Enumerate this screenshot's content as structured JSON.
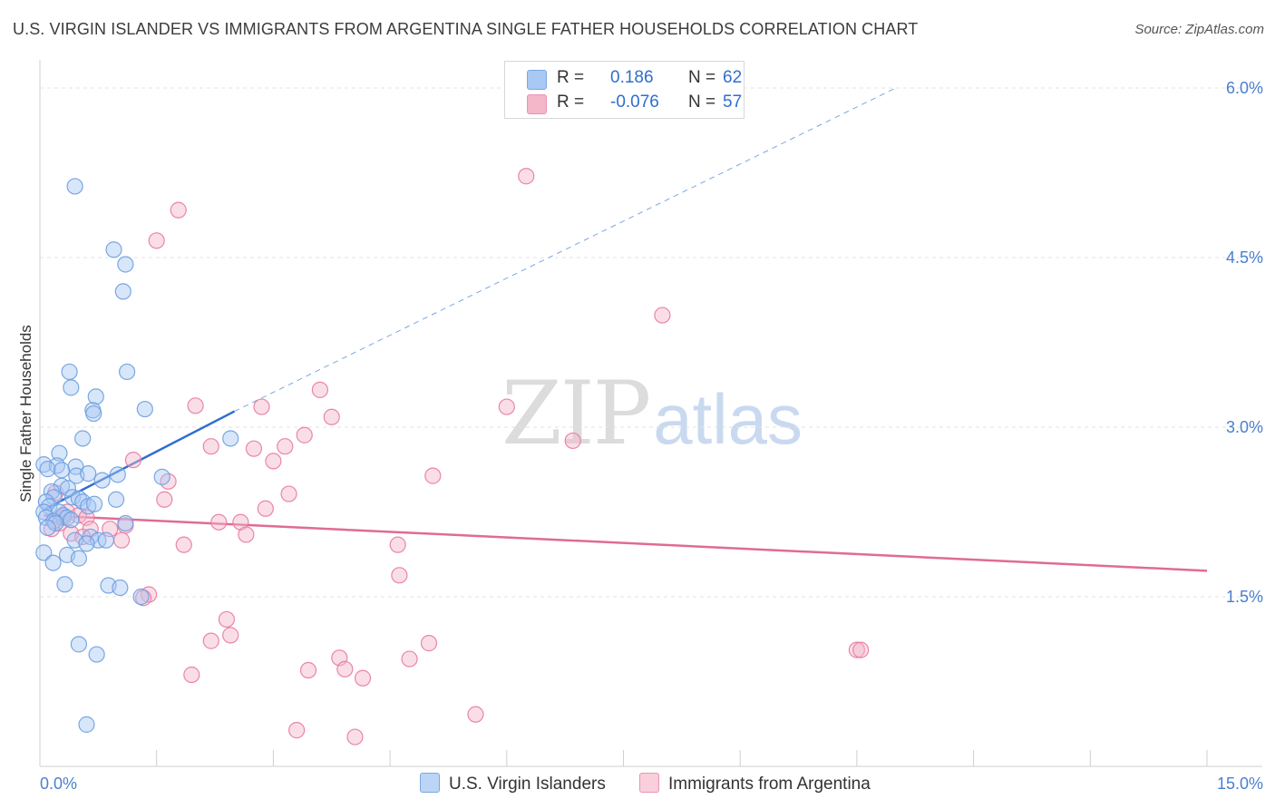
{
  "header": {
    "title": "U.S. VIRGIN ISLANDER VS IMMIGRANTS FROM ARGENTINA SINGLE FATHER HOUSEHOLDS CORRELATION CHART",
    "source": "Source: ZipAtlas.com"
  },
  "watermark": {
    "zip": "ZIP",
    "atlas": "atlas"
  },
  "legend_top": {
    "rows": [
      {
        "r_label": "R =",
        "r_value": "0.186",
        "n_label": "N =",
        "n_value": "62",
        "color": "#a9c8f3"
      },
      {
        "r_label": "R =",
        "r_value": "-0.076",
        "n_label": "N =",
        "n_value": "57",
        "color": "#f4b6c9"
      }
    ]
  },
  "legend_bottom": {
    "series1": "U.S. Virgin Islanders",
    "series2": "Immigrants from Argentina"
  },
  "chart_data": {
    "type": "scatter",
    "title": "U.S. VIRGIN ISLANDER VS IMMIGRANTS FROM ARGENTINA SINGLE FATHER HOUSEHOLDS CORRELATION CHART",
    "xlabel": "",
    "ylabel": "Single Father Households",
    "xlim": [
      0,
      15
    ],
    "ylim": [
      0,
      6.15
    ],
    "x_tick_labels": [
      {
        "value": 0,
        "label": "0.0%"
      },
      {
        "value": 15,
        "label": "15.0%"
      }
    ],
    "y_tick_labels": [
      {
        "value": 1.5,
        "label": "1.5%"
      },
      {
        "value": 3.0,
        "label": "3.0%"
      },
      {
        "value": 4.5,
        "label": "4.5%"
      },
      {
        "value": 6.0,
        "label": "6.0%"
      }
    ],
    "grid_y": [
      1.5,
      3.0,
      4.5,
      6.0
    ],
    "x_minor_ticks": [
      0,
      1.5,
      3,
      4.5,
      6,
      7.5,
      9,
      10.5,
      12,
      13.5,
      15
    ],
    "series": [
      {
        "name": "U.S. Virgin Islanders",
        "color": "#6b9ee0",
        "fill": "#a9c8f3",
        "points": [
          [
            0.45,
            5.13
          ],
          [
            0.95,
            4.57
          ],
          [
            1.1,
            4.44
          ],
          [
            1.07,
            4.2
          ],
          [
            0.38,
            3.49
          ],
          [
            1.12,
            3.49
          ],
          [
            0.4,
            3.35
          ],
          [
            0.72,
            3.27
          ],
          [
            0.68,
            3.15
          ],
          [
            0.69,
            3.12
          ],
          [
            1.35,
            3.16
          ],
          [
            0.55,
            2.9
          ],
          [
            2.45,
            2.9
          ],
          [
            0.25,
            2.77
          ],
          [
            0.05,
            2.67
          ],
          [
            0.22,
            2.66
          ],
          [
            0.46,
            2.65
          ],
          [
            0.1,
            2.63
          ],
          [
            0.28,
            2.62
          ],
          [
            0.47,
            2.57
          ],
          [
            0.62,
            2.59
          ],
          [
            1.0,
            2.58
          ],
          [
            1.57,
            2.56
          ],
          [
            0.8,
            2.53
          ],
          [
            0.28,
            2.48
          ],
          [
            0.36,
            2.46
          ],
          [
            0.15,
            2.43
          ],
          [
            0.18,
            2.38
          ],
          [
            0.42,
            2.38
          ],
          [
            0.5,
            2.37
          ],
          [
            0.98,
            2.36
          ],
          [
            0.55,
            2.34
          ],
          [
            0.08,
            2.34
          ],
          [
            0.12,
            2.3
          ],
          [
            0.62,
            2.3
          ],
          [
            0.7,
            2.32
          ],
          [
            0.05,
            2.25
          ],
          [
            0.25,
            2.25
          ],
          [
            0.3,
            2.22
          ],
          [
            0.35,
            2.2
          ],
          [
            0.08,
            2.2
          ],
          [
            0.18,
            2.17
          ],
          [
            0.4,
            2.18
          ],
          [
            0.2,
            2.15
          ],
          [
            1.1,
            2.15
          ],
          [
            0.1,
            2.11
          ],
          [
            0.65,
            2.03
          ],
          [
            0.75,
            2.0
          ],
          [
            0.85,
            2.0
          ],
          [
            0.45,
            2.0
          ],
          [
            0.6,
            1.97
          ],
          [
            0.05,
            1.89
          ],
          [
            0.35,
            1.87
          ],
          [
            0.5,
            1.84
          ],
          [
            0.17,
            1.8
          ],
          [
            0.32,
            1.61
          ],
          [
            0.88,
            1.6
          ],
          [
            1.03,
            1.58
          ],
          [
            1.3,
            1.5
          ],
          [
            0.5,
            1.08
          ],
          [
            0.73,
            0.99
          ],
          [
            0.6,
            0.37
          ]
        ],
        "trend": {
          "x0": 0.05,
          "y0": 2.27,
          "x1": 2.5,
          "y1": 3.14,
          "x_dash_end": 11.0,
          "y_dash_end": 6.0
        }
      },
      {
        "name": "Immigrants from Argentina",
        "color": "#e9799f",
        "fill": "#f4b6c9",
        "points": [
          [
            6.25,
            5.22
          ],
          [
            1.78,
            4.92
          ],
          [
            1.5,
            4.65
          ],
          [
            8.0,
            3.99
          ],
          [
            3.6,
            3.33
          ],
          [
            2.0,
            3.19
          ],
          [
            2.85,
            3.18
          ],
          [
            6.0,
            3.18
          ],
          [
            3.75,
            3.09
          ],
          [
            3.4,
            2.93
          ],
          [
            6.85,
            2.88
          ],
          [
            2.2,
            2.83
          ],
          [
            2.75,
            2.81
          ],
          [
            3.15,
            2.83
          ],
          [
            1.2,
            2.71
          ],
          [
            3.0,
            2.7
          ],
          [
            5.05,
            2.57
          ],
          [
            1.65,
            2.52
          ],
          [
            3.2,
            2.41
          ],
          [
            1.6,
            2.36
          ],
          [
            2.9,
            2.28
          ],
          [
            0.2,
            2.42
          ],
          [
            0.35,
            2.25
          ],
          [
            0.5,
            2.22
          ],
          [
            0.6,
            2.2
          ],
          [
            0.25,
            2.15
          ],
          [
            2.3,
            2.16
          ],
          [
            2.58,
            2.16
          ],
          [
            1.1,
            2.13
          ],
          [
            0.9,
            2.1
          ],
          [
            0.15,
            2.1
          ],
          [
            0.65,
            2.1
          ],
          [
            0.4,
            2.06
          ],
          [
            2.65,
            2.05
          ],
          [
            0.55,
            2.03
          ],
          [
            1.05,
            2.0
          ],
          [
            1.85,
            1.96
          ],
          [
            4.6,
            1.96
          ],
          [
            4.62,
            1.69
          ],
          [
            1.4,
            1.52
          ],
          [
            1.33,
            1.49
          ],
          [
            2.4,
            1.3
          ],
          [
            2.45,
            1.16
          ],
          [
            2.2,
            1.11
          ],
          [
            5.0,
            1.09
          ],
          [
            10.5,
            1.03
          ],
          [
            10.55,
            1.03
          ],
          [
            3.85,
            0.96
          ],
          [
            4.75,
            0.95
          ],
          [
            3.92,
            0.86
          ],
          [
            3.45,
            0.85
          ],
          [
            1.95,
            0.81
          ],
          [
            4.15,
            0.78
          ],
          [
            5.6,
            0.46
          ],
          [
            3.3,
            0.32
          ],
          [
            4.05,
            0.26
          ],
          [
            0.3,
            2.2
          ]
        ],
        "trend": {
          "x0": 0.05,
          "y0": 2.22,
          "x1": 15.0,
          "y1": 1.73
        }
      }
    ]
  }
}
